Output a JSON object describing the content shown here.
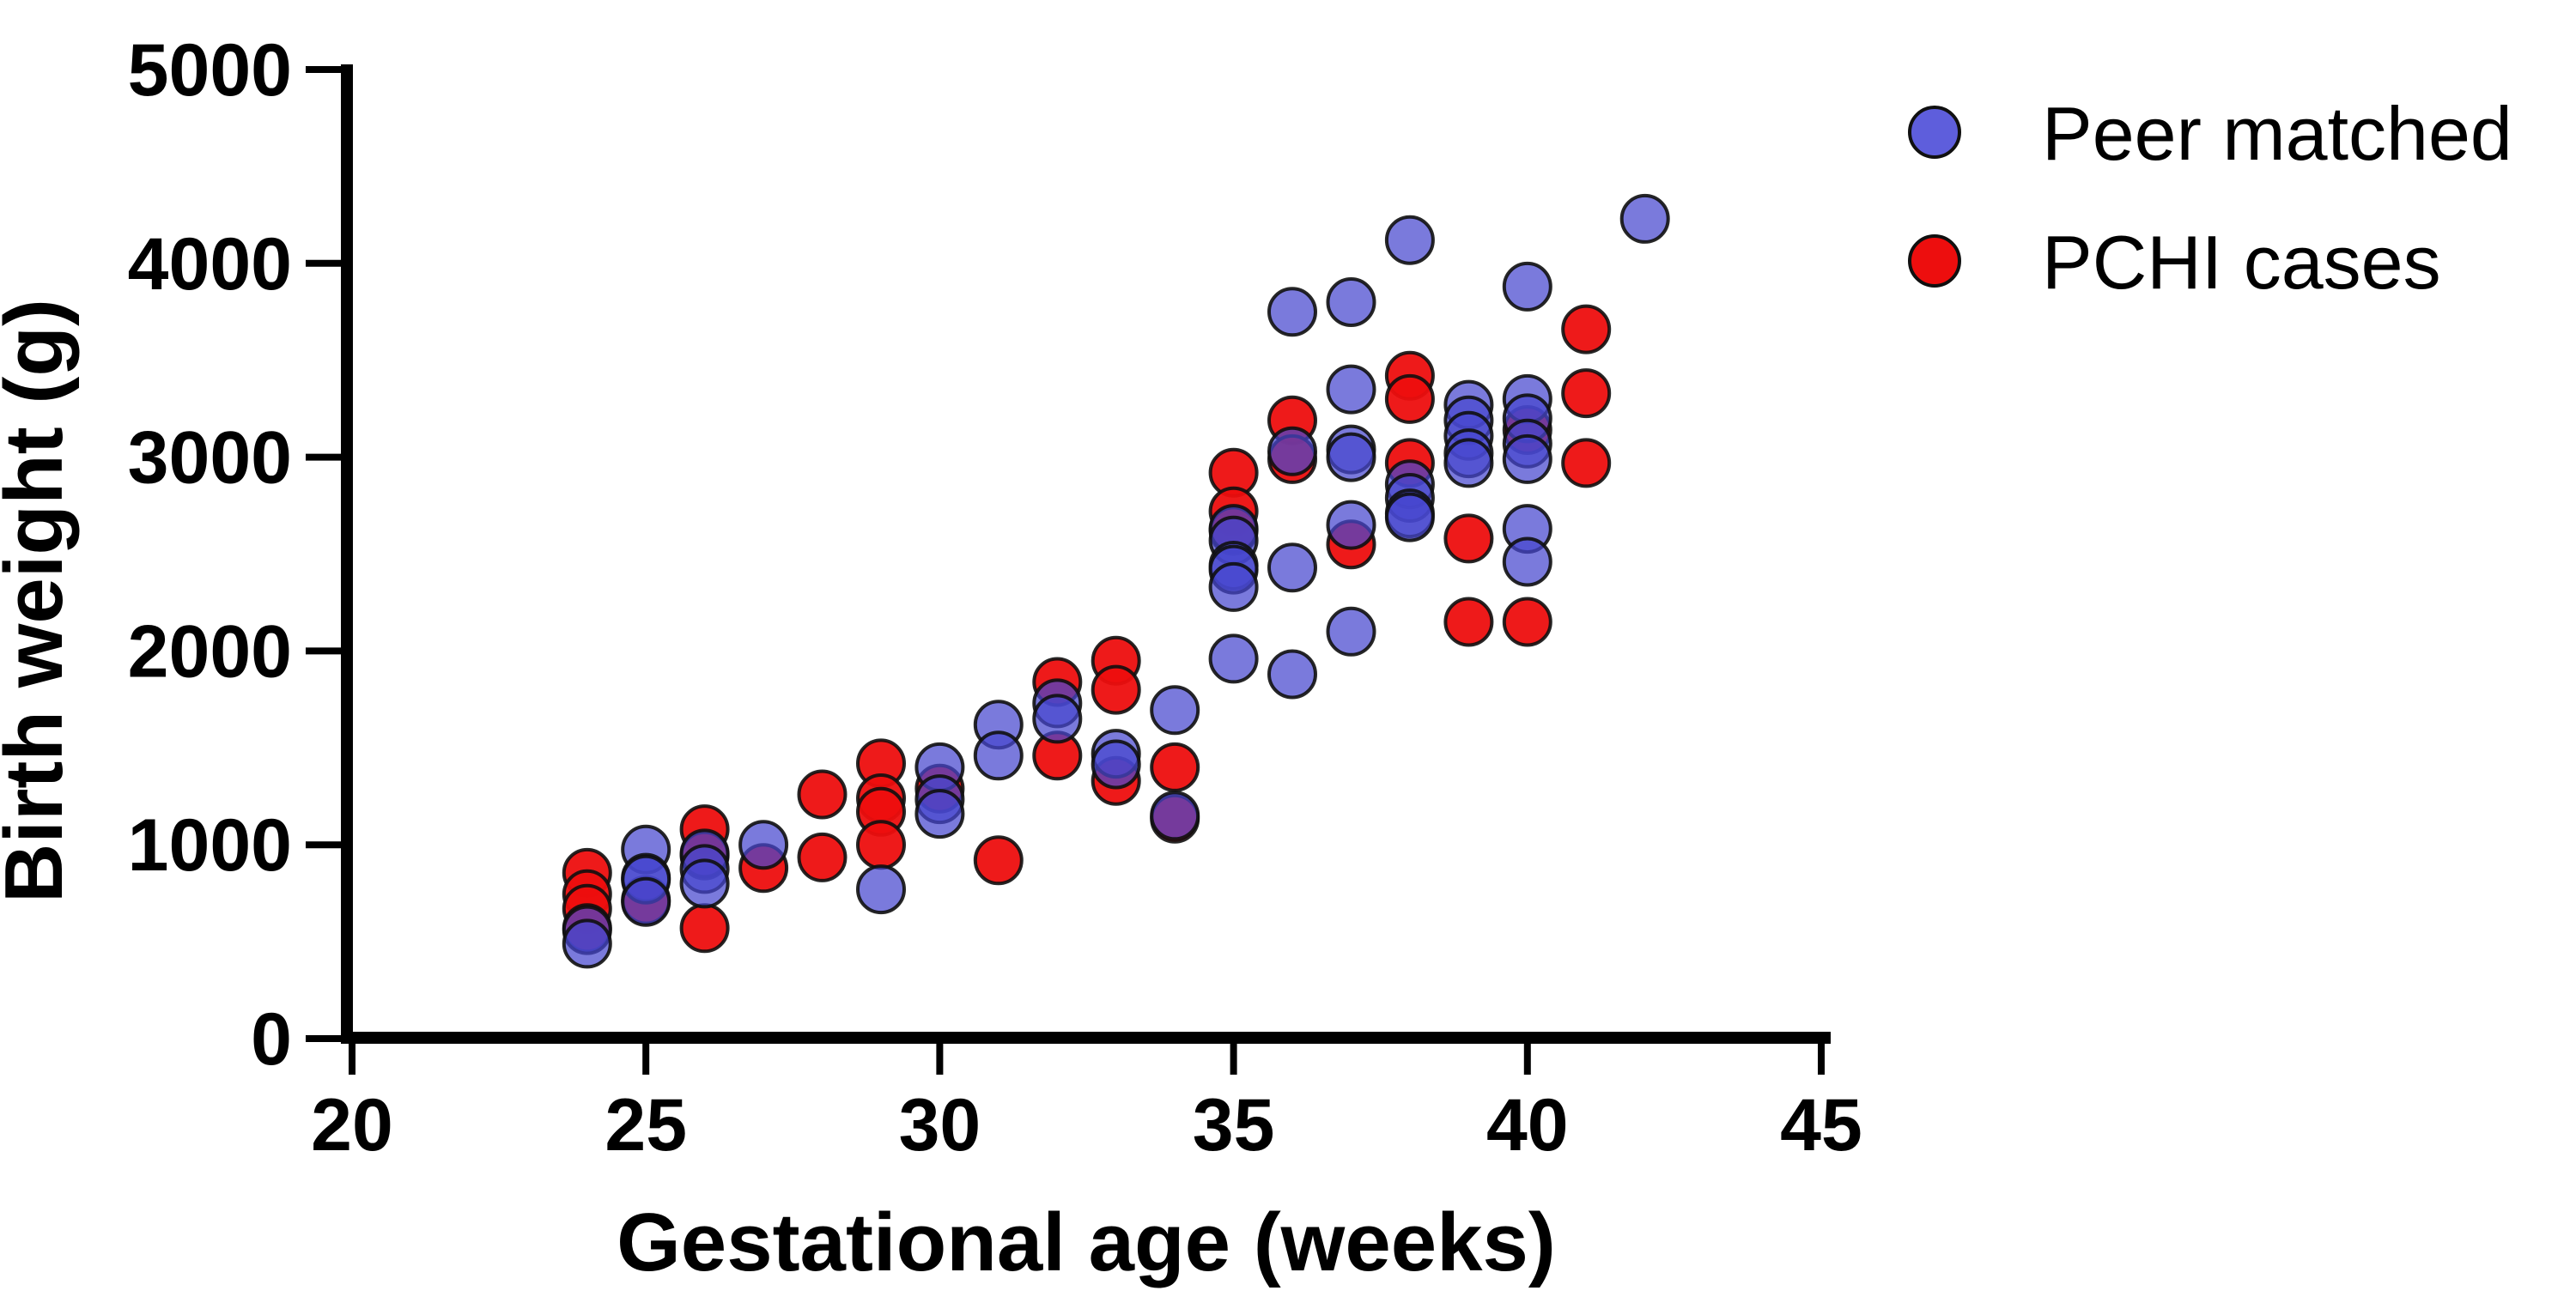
{
  "chart_data": {
    "type": "scatter",
    "title": "",
    "xlabel": "Gestational age (weeks)",
    "ylabel": "Birth weight (g)",
    "xlim": [
      20,
      45
    ],
    "ylim": [
      0,
      5000
    ],
    "xticks": [
      20,
      25,
      30,
      35,
      40,
      45
    ],
    "yticks": [
      0,
      1000,
      2000,
      3000,
      4000,
      5000
    ],
    "xtick_labels": [
      "20",
      "25",
      "30",
      "35",
      "40",
      "45"
    ],
    "ytick_labels": [
      "0",
      "1000",
      "2000",
      "3000",
      "4000",
      "5000"
    ],
    "grid": false,
    "legend_position": "top-right",
    "axis_color": "#000000",
    "legend": [
      {
        "name": "peer-matched",
        "label": "Peer matched",
        "color": "#5454D6"
      },
      {
        "name": "pchi-cases",
        "label": "PCHI cases",
        "color": "#ED0E0E"
      }
    ],
    "series": [
      {
        "name": "PCHI cases",
        "color": "#ED0E0E",
        "alpha": 0.95,
        "points": [
          [
            24,
            855
          ],
          [
            24,
            745
          ],
          [
            24,
            670
          ],
          [
            24,
            570
          ],
          [
            25,
            715
          ],
          [
            26,
            1080
          ],
          [
            26,
            945
          ],
          [
            26,
            570
          ],
          [
            27,
            880
          ],
          [
            28,
            1260
          ],
          [
            28,
            935
          ],
          [
            29,
            1420
          ],
          [
            29,
            1240
          ],
          [
            29,
            1170
          ],
          [
            29,
            1000
          ],
          [
            30,
            1290
          ],
          [
            31,
            920
          ],
          [
            32,
            1840
          ],
          [
            32,
            1460
          ],
          [
            33,
            1950
          ],
          [
            33,
            1800
          ],
          [
            33,
            1330
          ],
          [
            34,
            1400
          ],
          [
            34,
            1135
          ],
          [
            35,
            2920
          ],
          [
            35,
            2720
          ],
          [
            35,
            2620
          ],
          [
            36,
            3190
          ],
          [
            36,
            2990
          ],
          [
            37,
            2550
          ],
          [
            38,
            3420
          ],
          [
            38,
            3300
          ],
          [
            38,
            2970
          ],
          [
            39,
            2580
          ],
          [
            39,
            2150
          ],
          [
            40,
            3140
          ],
          [
            40,
            2150
          ],
          [
            41,
            3660
          ],
          [
            41,
            3330
          ],
          [
            41,
            2970
          ]
        ]
      },
      {
        "name": "Peer matched",
        "color": "#4646CF",
        "alpha": 0.72,
        "points": [
          [
            24,
            560
          ],
          [
            24,
            490
          ],
          [
            25,
            975
          ],
          [
            25,
            830
          ],
          [
            25,
            820
          ],
          [
            25,
            705
          ],
          [
            26,
            955
          ],
          [
            26,
            875
          ],
          [
            26,
            800
          ],
          [
            27,
            1000
          ],
          [
            29,
            770
          ],
          [
            30,
            1400
          ],
          [
            30,
            1235
          ],
          [
            30,
            1160
          ],
          [
            31,
            1620
          ],
          [
            31,
            1460
          ],
          [
            32,
            1730
          ],
          [
            32,
            1650
          ],
          [
            33,
            1470
          ],
          [
            33,
            1415
          ],
          [
            34,
            1695
          ],
          [
            34,
            1150
          ],
          [
            35,
            2630
          ],
          [
            35,
            2570
          ],
          [
            35,
            2440
          ],
          [
            35,
            2420
          ],
          [
            35,
            2330
          ],
          [
            35,
            1960
          ],
          [
            36,
            3750
          ],
          [
            36,
            3030
          ],
          [
            36,
            2430
          ],
          [
            36,
            1880
          ],
          [
            37,
            3800
          ],
          [
            37,
            3350
          ],
          [
            37,
            3040
          ],
          [
            37,
            3000
          ],
          [
            37,
            2650
          ],
          [
            37,
            2100
          ],
          [
            38,
            4120
          ],
          [
            38,
            2860
          ],
          [
            38,
            2790
          ],
          [
            38,
            2710
          ],
          [
            38,
            2690
          ],
          [
            39,
            3270
          ],
          [
            39,
            3190
          ],
          [
            39,
            3110
          ],
          [
            39,
            3020
          ],
          [
            39,
            2970
          ],
          [
            40,
            3880
          ],
          [
            40,
            3300
          ],
          [
            40,
            3200
          ],
          [
            40,
            3070
          ],
          [
            40,
            2990
          ],
          [
            40,
            2630
          ],
          [
            40,
            2460
          ],
          [
            42,
            4230
          ]
        ]
      }
    ]
  }
}
